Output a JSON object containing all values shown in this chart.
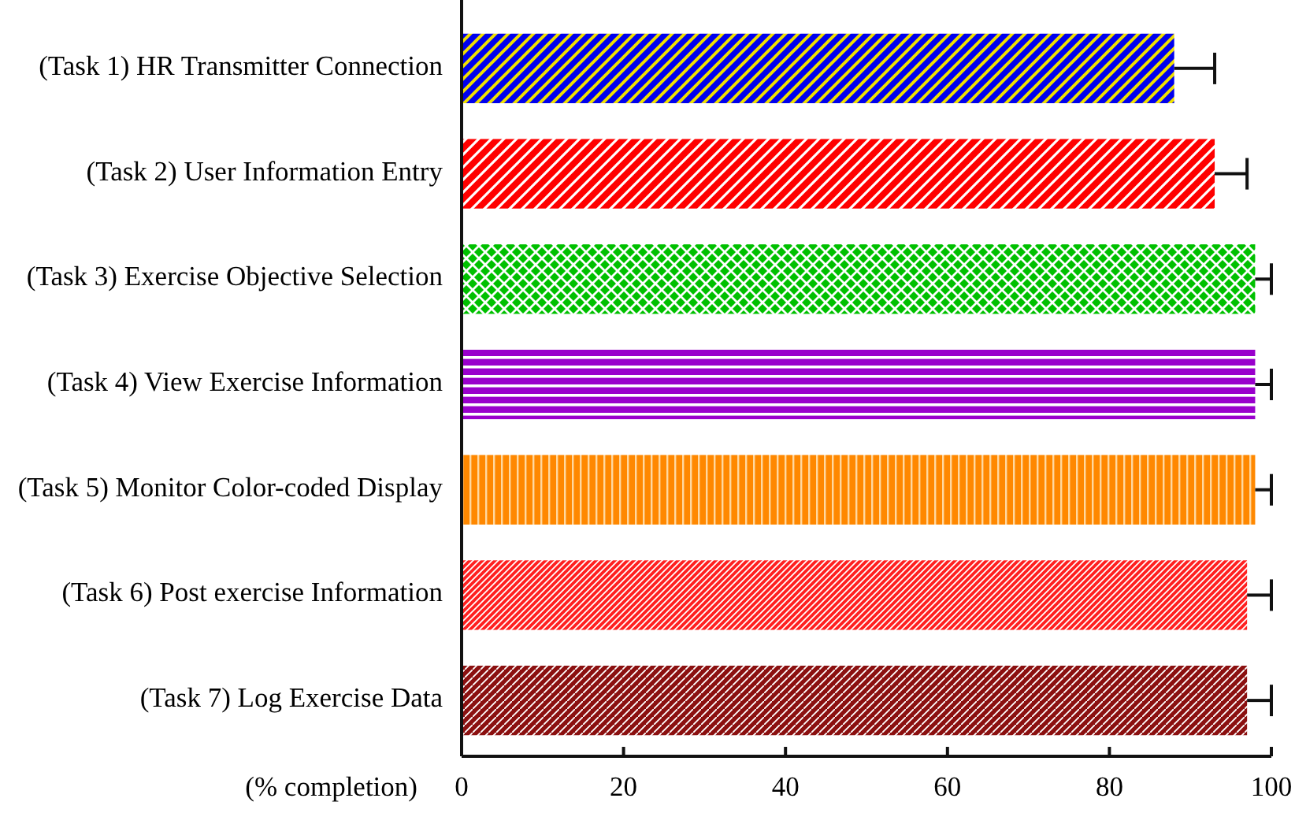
{
  "chart_data": {
    "type": "bar",
    "orientation": "horizontal",
    "xlabel": "(% completion)",
    "categories": [
      "(Task 1) HR Transmitter Connection",
      "(Task 2) User Information Entry",
      "(Task 3) Exercise Objective Selection",
      "(Task 4) View Exercise Information",
      "(Task 5) Monitor Color-coded Display",
      "(Task 6) Post exercise Information",
      "(Task 7) Log Exercise Data"
    ],
    "values": [
      88,
      93,
      98,
      98,
      98,
      97,
      97
    ],
    "colors": [
      "#0000ee",
      "#ff0000",
      "#00c000",
      "#9900cc",
      "#ff8800",
      "#ff2020",
      "#8b1010"
    ],
    "errors": [
      [
        88,
        93
      ],
      [
        93,
        97
      ],
      [
        98,
        100
      ],
      [
        98,
        100
      ],
      [
        98,
        100
      ],
      [
        97,
        100
      ],
      [
        97,
        100
      ]
    ],
    "xlim": [
      0,
      100
    ],
    "xticks": [
      0,
      20,
      40,
      60,
      80,
      100
    ],
    "grid": false
  }
}
